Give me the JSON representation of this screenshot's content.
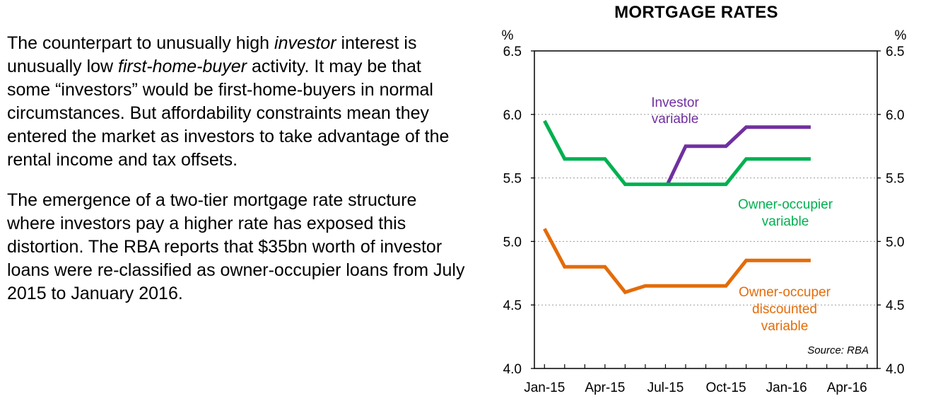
{
  "text": {
    "p1_a": "The counterpart to unusually high ",
    "p1_em1": "investor",
    "p1_b": " interest is unusually low ",
    "p1_em2": "first-home-buyer",
    "p1_c": " activity.  It may be that some “investors” would be first-home-buyers in normal circumstances. But affordability constraints mean they entered the market as investors to take advantage of the rental income and tax offsets.",
    "p2": "The emergence of a two-tier mortgage rate structure where investors pay a higher rate has exposed this distortion.  The RBA reports that $35bn worth of investor loans were re-classified as owner-occupier loans from July 2015 to January 2016."
  },
  "chart_data": {
    "type": "line",
    "title": "MORTGAGE RATES",
    "unit_left": "%",
    "unit_right": "%",
    "ylim": [
      4.0,
      6.5
    ],
    "yticks": [
      "4.0",
      "4.5",
      "5.0",
      "5.5",
      "6.0",
      "6.5"
    ],
    "ytick_values": [
      4.0,
      4.5,
      5.0,
      5.5,
      6.0,
      6.5
    ],
    "xlim": [
      -0.5,
      16.5
    ],
    "xticks": [
      "Jan-15",
      "Apr-15",
      "Jul-15",
      "Oct-15",
      "Jan-16",
      "Apr-16"
    ],
    "xtick_positions": [
      0,
      3,
      6,
      9,
      12,
      15
    ],
    "source": "Source: RBA",
    "series": [
      {
        "name": "Investor variable",
        "label_lines": [
          "Investor",
          "variable"
        ],
        "color": "#7030A0",
        "x": [
          6.1,
          7,
          8,
          9,
          10,
          11,
          12,
          13.2
        ],
        "values": [
          5.45,
          5.75,
          5.75,
          5.75,
          5.9,
          5.9,
          5.9,
          5.9
        ]
      },
      {
        "name": "Owner-occupier variable",
        "label_lines": [
          "Owner-occupier",
          "variable"
        ],
        "color": "#00B050",
        "x": [
          0,
          1,
          2,
          3,
          4,
          5,
          6,
          7,
          8,
          9,
          10,
          11,
          12,
          13.2
        ],
        "values": [
          5.95,
          5.65,
          5.65,
          5.65,
          5.45,
          5.45,
          5.45,
          5.45,
          5.45,
          5.45,
          5.65,
          5.65,
          5.65,
          5.65
        ]
      },
      {
        "name": "Owner-occuper discounted variable",
        "label_lines": [
          "Owner-occuper",
          "discounted",
          "variable"
        ],
        "color": "#E36C09",
        "x": [
          0,
          1,
          2,
          3,
          4,
          5,
          6,
          7,
          8,
          9,
          10,
          11,
          12,
          13.2
        ],
        "values": [
          5.1,
          4.8,
          4.8,
          4.8,
          4.6,
          4.65,
          4.65,
          4.65,
          4.65,
          4.65,
          4.85,
          4.85,
          4.85,
          4.85
        ]
      }
    ]
  }
}
